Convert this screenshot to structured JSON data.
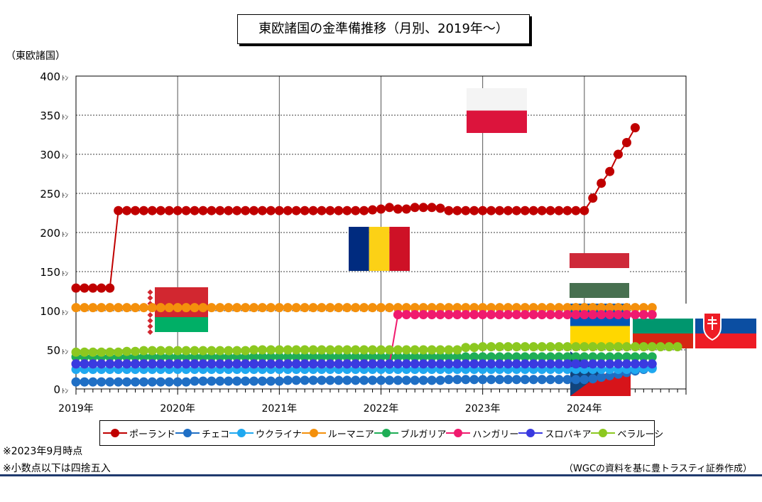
{
  "chart_data": {
    "type": "line",
    "title": "東欧諸国の金準備推移（月別、2019年～）",
    "ylabel": "（東欧諸国）",
    "y_unit": "ﾄﾝ",
    "ylim": [
      0,
      400
    ],
    "yticks": [
      0,
      50,
      100,
      150,
      200,
      250,
      300,
      350,
      400
    ],
    "x_tick_labels": [
      "2019年",
      "2020年",
      "2021年",
      "2022年",
      "2023年",
      "2024年"
    ],
    "x_start": "2019-01",
    "x_end": "2024-12",
    "grid": true,
    "legend_position": "bottom",
    "series": [
      {
        "name": "ポーランド",
        "color": "#c00000",
        "values": [
          129,
          129,
          129,
          129,
          129,
          228,
          228,
          228,
          228,
          228,
          228,
          228,
          228,
          228,
          228,
          228,
          228,
          228,
          228,
          228,
          228,
          228,
          228,
          228,
          228,
          228,
          228,
          228,
          228,
          228,
          228,
          228,
          228,
          228,
          228,
          229,
          230,
          232,
          230,
          230,
          232,
          232,
          232,
          231,
          228,
          228,
          228,
          228,
          228,
          228,
          228,
          228,
          228,
          228,
          228,
          228,
          228,
          228,
          228,
          228,
          228,
          244,
          263,
          278,
          300,
          315,
          334
        ]
      },
      {
        "name": "チェコ",
        "color": "#1f6fc5",
        "values": [
          9,
          9,
          9,
          9,
          9,
          9,
          9,
          9,
          9,
          9,
          9,
          9,
          9,
          9,
          10,
          10,
          10,
          10,
          10,
          10,
          10,
          10,
          10,
          10,
          10,
          11,
          11,
          11,
          11,
          11,
          11,
          11,
          11,
          11,
          11,
          11,
          11,
          11,
          11,
          11,
          11,
          11,
          11,
          11,
          12,
          12,
          12,
          12,
          12,
          12,
          12,
          12,
          12,
          12,
          12,
          12,
          12,
          12,
          12,
          12,
          12,
          13,
          15,
          17,
          19,
          21,
          23,
          25,
          27
        ]
      },
      {
        "name": "ウクライナ",
        "color": "#1fa8f0",
        "values": [
          25,
          25,
          25,
          25,
          25,
          25,
          25,
          25,
          25,
          25,
          25,
          25,
          25,
          25,
          25,
          25,
          25,
          25,
          25,
          25,
          25,
          25,
          25,
          25,
          25,
          25,
          25,
          25,
          25,
          25,
          25,
          25,
          25,
          25,
          25,
          25,
          25,
          25,
          25,
          25,
          25,
          25,
          25,
          25,
          25,
          25,
          25,
          25,
          25,
          25,
          25,
          25,
          25,
          25,
          25,
          25,
          25,
          25,
          25,
          25,
          25,
          25,
          25,
          25,
          25,
          25,
          25,
          26,
          26
        ]
      },
      {
        "name": "ルーマニア",
        "color": "#f4900c",
        "values": [
          104,
          104,
          104,
          104,
          104,
          104,
          104,
          104,
          104,
          104,
          104,
          104,
          104,
          104,
          104,
          104,
          104,
          104,
          104,
          104,
          104,
          104,
          104,
          104,
          104,
          104,
          104,
          104,
          104,
          104,
          104,
          104,
          104,
          104,
          104,
          104,
          104,
          104,
          104,
          104,
          104,
          104,
          104,
          104,
          104,
          104,
          104,
          104,
          104,
          104,
          104,
          104,
          104,
          104,
          104,
          104,
          104,
          104,
          104,
          104,
          104,
          104,
          104,
          104,
          104,
          104,
          104,
          104,
          104
        ]
      },
      {
        "name": "ブルガリア",
        "color": "#1fae56",
        "values": [
          41,
          41,
          41,
          41,
          41,
          41,
          41,
          41,
          41,
          41,
          41,
          41,
          41,
          41,
          41,
          41,
          41,
          41,
          41,
          41,
          41,
          41,
          41,
          41,
          41,
          41,
          41,
          41,
          41,
          41,
          41,
          41,
          41,
          41,
          41,
          41,
          41,
          41,
          41,
          41,
          41,
          41,
          41,
          41,
          41,
          41,
          41,
          41,
          41,
          41,
          41,
          41,
          41,
          41,
          41,
          41,
          41,
          41,
          41,
          41,
          41,
          41,
          41,
          41,
          41,
          41,
          41,
          41,
          41
        ]
      },
      {
        "name": "ハンガリー",
        "color": "#f01a6e",
        "values": [
          32,
          32,
          32,
          32,
          32,
          32,
          32,
          32,
          32,
          32,
          32,
          32,
          32,
          32,
          32,
          32,
          32,
          32,
          32,
          32,
          32,
          32,
          32,
          32,
          32,
          32,
          32,
          32,
          32,
          32,
          32,
          32,
          32,
          32,
          32,
          32,
          32,
          32,
          95,
          95,
          95,
          95,
          95,
          95,
          95,
          95,
          95,
          95,
          95,
          95,
          95,
          95,
          95,
          95,
          95,
          95,
          95,
          95,
          95,
          95,
          95,
          95,
          95,
          95,
          95,
          95,
          95,
          95,
          95
        ]
      },
      {
        "name": "スロバキア",
        "color": "#3a3ae0",
        "values": [
          32,
          32,
          32,
          32,
          32,
          32,
          32,
          32,
          32,
          32,
          32,
          32,
          32,
          32,
          32,
          32,
          32,
          32,
          32,
          32,
          32,
          32,
          32,
          32,
          32,
          32,
          32,
          32,
          32,
          32,
          32,
          32,
          32,
          32,
          32,
          32,
          32,
          32,
          32,
          32,
          32,
          32,
          32,
          32,
          32,
          32,
          32,
          32,
          32,
          32,
          32,
          32,
          32,
          32,
          32,
          32,
          32,
          32,
          32,
          32,
          32,
          32,
          32,
          32,
          32,
          32,
          32,
          32,
          32
        ]
      },
      {
        "name": "ベラルーシ",
        "color": "#8cc820",
        "values": [
          47,
          47,
          47,
          47,
          47,
          47,
          48,
          48,
          49,
          49,
          49,
          49,
          49,
          49,
          49,
          49,
          49,
          49,
          49,
          49,
          49,
          50,
          50,
          50,
          50,
          50,
          50,
          50,
          50,
          50,
          50,
          50,
          50,
          50,
          50,
          50,
          50,
          50,
          50,
          50,
          50,
          50,
          50,
          50,
          50,
          50,
          53,
          53,
          54,
          54,
          54,
          54,
          54,
          54,
          54,
          54,
          54,
          54,
          54,
          54,
          54,
          54,
          54,
          54,
          54,
          54,
          54,
          54,
          54,
          54,
          54,
          54
        ]
      }
    ],
    "flags": [
      "poland-flag",
      "romania-flag",
      "belarus-flag",
      "hungary-flag",
      "ukraine-flag",
      "bulgaria-flag",
      "slovakia-flag",
      "czech-flag"
    ]
  },
  "notes": {
    "as_of": "※2023年9月時点",
    "rounding": "※小数点以下は四捨五入",
    "source": "（WGCの資料を基に豊トラスティ証券作成）"
  }
}
